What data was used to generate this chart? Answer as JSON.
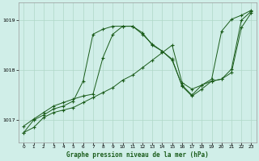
{
  "title": "Graphe pression niveau de la mer (hPa)",
  "bg_color": "#d0eee8",
  "grid_color": "#b0d8c8",
  "line_color": "#1a5c1a",
  "x_ticks": [
    0,
    1,
    2,
    3,
    4,
    5,
    6,
    7,
    8,
    9,
    10,
    11,
    12,
    13,
    14,
    15,
    16,
    17,
    18,
    19,
    20,
    21,
    22,
    23
  ],
  "ylim": [
    1016.55,
    1019.35
  ],
  "yticks": [
    1017,
    1018,
    1019
  ],
  "series": [
    [
      1016.75,
      1016.85,
      1017.05,
      1017.15,
      1017.2,
      1017.25,
      1017.35,
      1017.45,
      1017.55,
      1017.65,
      1017.8,
      1017.9,
      1018.05,
      1018.2,
      1018.35,
      1018.5,
      1017.75,
      1017.62,
      1017.7,
      1017.78,
      1017.82,
      1017.95,
      1018.85,
      1019.15
    ],
    [
      1016.75,
      1017.0,
      1017.1,
      1017.22,
      1017.28,
      1017.38,
      1017.78,
      1018.72,
      1018.82,
      1018.88,
      1018.88,
      1018.88,
      1018.75,
      1018.5,
      1018.38,
      1018.2,
      1017.7,
      1017.5,
      1017.7,
      1017.82,
      1018.78,
      1019.02,
      1019.1,
      1019.2
    ],
    [
      1016.88,
      1017.02,
      1017.15,
      1017.28,
      1017.35,
      1017.42,
      1017.48,
      1017.52,
      1018.25,
      1018.72,
      1018.88,
      1018.88,
      1018.72,
      1018.52,
      1018.38,
      1018.22,
      1017.68,
      1017.48,
      1017.62,
      1017.78,
      1017.82,
      1018.02,
      1019.0,
      1019.18
    ]
  ]
}
